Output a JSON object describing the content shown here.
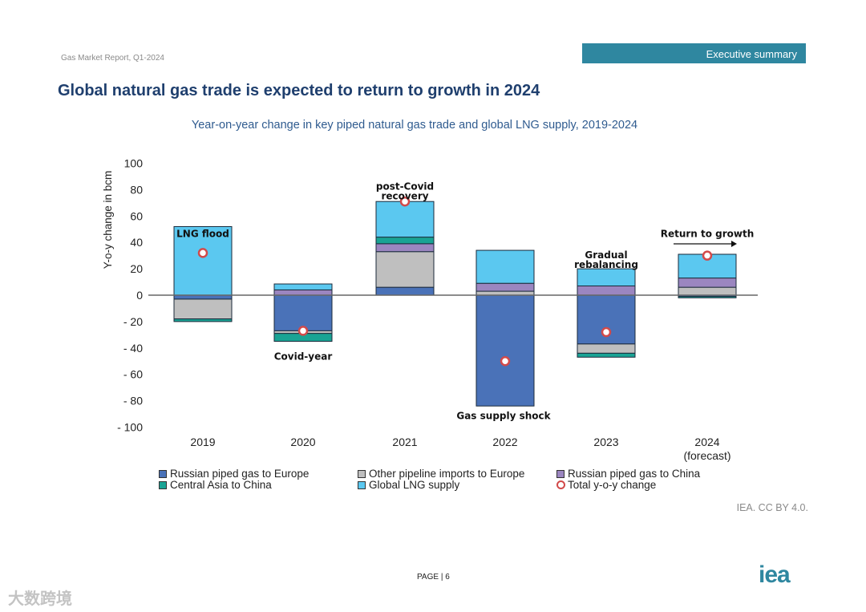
{
  "header": {
    "report": "Gas Market Report, Q1-2024",
    "section": "Executive summary"
  },
  "title": "Global natural gas trade is expected to return to growth in 2024",
  "chart_data": {
    "type": "bar",
    "stacked": true,
    "title": "Year-on-year change in key piped natural gas trade and global LNG supply, 2019-2024",
    "ylabel": "Y-o-y change in bcm",
    "xlabel": "",
    "ylim": [
      -100,
      100
    ],
    "yticks": [
      "100",
      "80",
      "60",
      "40",
      "20",
      "0",
      "- 20",
      "- 40",
      "- 60",
      "- 80",
      "- 100"
    ],
    "ytick_values": [
      100,
      80,
      60,
      40,
      20,
      0,
      -20,
      -40,
      -60,
      -80,
      -100
    ],
    "categories": [
      "2019",
      "2020",
      "2021",
      "2022",
      "2023",
      "2024"
    ],
    "category_sub": [
      "",
      "",
      "",
      "",
      "",
      "(forecast)"
    ],
    "series": [
      {
        "name": "Russian piped gas to Europe",
        "color": "#4a72b8",
        "values": [
          -3,
          -27,
          6,
          -84,
          -37,
          -1
        ]
      },
      {
        "name": "Other pipeline imports to Europe",
        "color": "#bfbfbf",
        "values": [
          -15,
          -2,
          27,
          3,
          -7,
          6
        ]
      },
      {
        "name": "Russian piped gas to China",
        "color": "#9b86c0",
        "values": [
          0,
          4,
          6,
          6,
          7,
          7
        ]
      },
      {
        "name": "Central Asia to China",
        "color": "#19a394",
        "values": [
          -2,
          -6,
          5,
          0,
          -3,
          -1
        ]
      },
      {
        "name": "Global LNG supply",
        "color": "#5bc8f0",
        "values": [
          52,
          4.5,
          27,
          25,
          13,
          18
        ]
      }
    ],
    "total": {
      "name": "Total y-o-y change",
      "color": "#d24a4a",
      "values": [
        32,
        -27,
        71,
        -50,
        -28,
        30
      ]
    },
    "annotations": [
      {
        "text": "LNG flood",
        "category": "2019",
        "y": 44
      },
      {
        "text": "Covid-year",
        "category": "2020",
        "y": -49
      },
      {
        "text": "post-Covid recovery",
        "category": "2021",
        "y": 80
      },
      {
        "text": "Gas supply shock",
        "category": "2022",
        "y": -94
      },
      {
        "text": "Gradual rebalancing",
        "category": "2023",
        "y": 28
      },
      {
        "text": "Return to growth",
        "category": "2024",
        "y": 44
      }
    ],
    "legend_position": "bottom"
  },
  "credit": "IEA. CC BY 4.0.",
  "page": "PAGE | 6",
  "logo": "iea",
  "watermark": "大数跨境"
}
